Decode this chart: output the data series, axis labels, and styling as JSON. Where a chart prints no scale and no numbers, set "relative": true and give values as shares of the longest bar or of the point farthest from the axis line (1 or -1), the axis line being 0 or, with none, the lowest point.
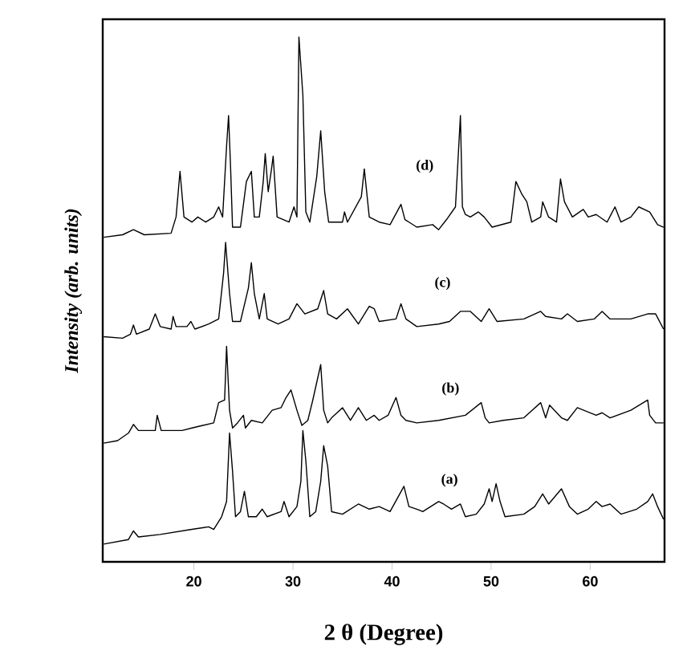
{
  "chart_data": {
    "type": "line",
    "relative": true,
    "xlabel": "2 θ (Degree)",
    "ylabel": "*Intensity (arb. units)*",
    "xlim": [
      10.8,
      67.5
    ],
    "xticks": [
      20,
      30,
      40,
      50,
      60
    ],
    "grid": false,
    "marker": "none",
    "line_style": "solid",
    "annotations": [
      {
        "text": "(a)",
        "x": 45.8,
        "y": 0.126
      },
      {
        "text": "(b)",
        "x": 45.9,
        "y": 0.306
      },
      {
        "text": "(c)",
        "x": 45.1,
        "y": 0.514
      },
      {
        "text": "(d)",
        "x": 43.3,
        "y": 0.745
      }
    ],
    "series": [
      {
        "color": "#000000",
        "x": [
          10.9,
          13.4,
          13.9,
          14.4,
          16.6,
          19.8,
          21.5,
          22.0,
          22.8,
          23.3,
          23.6,
          23.9,
          24.2,
          24.7,
          25.1,
          25.5,
          26.3,
          26.9,
          27.4,
          28.8,
          29.1,
          29.6,
          30.4,
          30.8,
          31.0,
          31.3,
          31.7,
          32.3,
          32.8,
          33.1,
          33.5,
          33.9,
          35.0,
          36.6,
          37.7,
          38.7,
          39.8,
          41.2,
          41.7,
          42.5,
          43.1,
          44.7,
          45.2,
          46.0,
          46.9,
          47.4,
          48.5,
          49.3,
          49.8,
          50.1,
          50.5,
          50.9,
          51.4,
          53.3,
          54.4,
          55.2,
          55.8,
          57.1,
          57.9,
          58.7,
          59.8,
          60.6,
          61.2,
          62.0,
          63.1,
          64.7,
          65.8,
          66.3,
          66.8,
          67.4
        ],
        "values": [
          0.0,
          0.009,
          0.026,
          0.014,
          0.019,
          0.029,
          0.034,
          0.029,
          0.054,
          0.084,
          0.219,
          0.144,
          0.054,
          0.064,
          0.104,
          0.054,
          0.054,
          0.069,
          0.054,
          0.064,
          0.084,
          0.054,
          0.074,
          0.124,
          0.224,
          0.164,
          0.054,
          0.064,
          0.124,
          0.194,
          0.154,
          0.064,
          0.059,
          0.079,
          0.069,
          0.074,
          0.064,
          0.114,
          0.074,
          0.069,
          0.064,
          0.084,
          0.079,
          0.069,
          0.079,
          0.054,
          0.059,
          0.079,
          0.109,
          0.084,
          0.119,
          0.084,
          0.054,
          0.059,
          0.074,
          0.099,
          0.079,
          0.109,
          0.074,
          0.059,
          0.069,
          0.084,
          0.074,
          0.079,
          0.059,
          0.069,
          0.084,
          0.099,
          0.074,
          0.049
        ]
      },
      {
        "color": "#000000",
        "x": [
          10.9,
          12.3,
          13.4,
          13.9,
          14.4,
          16.1,
          16.3,
          16.7,
          18.8,
          19.8,
          20.9,
          22.0,
          22.5,
          23.1,
          23.3,
          23.6,
          23.9,
          24.4,
          25.0,
          25.2,
          25.8,
          26.9,
          27.9,
          28.8,
          29.3,
          29.8,
          30.4,
          30.9,
          31.5,
          32.0,
          32.8,
          33.1,
          33.5,
          33.9,
          35.0,
          35.8,
          36.6,
          37.4,
          38.2,
          38.7,
          39.6,
          40.4,
          40.9,
          41.4,
          42.5,
          44.7,
          47.4,
          49.0,
          49.4,
          49.8,
          51.2,
          53.3,
          55.0,
          55.5,
          55.9,
          57.1,
          57.7,
          58.7,
          60.6,
          61.2,
          62.0,
          64.1,
          65.8,
          66.0,
          66.6,
          67.4
        ],
        "values": [
          0.199,
          0.204,
          0.219,
          0.236,
          0.224,
          0.224,
          0.254,
          0.224,
          0.224,
          0.229,
          0.234,
          0.239,
          0.279,
          0.284,
          0.39,
          0.264,
          0.229,
          0.239,
          0.254,
          0.229,
          0.244,
          0.239,
          0.264,
          0.269,
          0.289,
          0.304,
          0.264,
          0.234,
          0.244,
          0.284,
          0.354,
          0.264,
          0.239,
          0.249,
          0.269,
          0.244,
          0.269,
          0.244,
          0.254,
          0.244,
          0.254,
          0.289,
          0.254,
          0.244,
          0.239,
          0.244,
          0.254,
          0.279,
          0.249,
          0.239,
          0.244,
          0.249,
          0.279,
          0.249,
          0.274,
          0.249,
          0.244,
          0.269,
          0.254,
          0.259,
          0.249,
          0.264,
          0.284,
          0.254,
          0.239,
          0.239
        ]
      },
      {
        "color": "#000000",
        "x": [
          10.9,
          12.8,
          13.6,
          13.9,
          14.2,
          15.5,
          16.1,
          16.6,
          17.7,
          17.9,
          18.2,
          19.3,
          19.7,
          20.1,
          21.5,
          22.5,
          23.0,
          23.2,
          23.6,
          23.9,
          24.7,
          25.5,
          25.8,
          26.1,
          26.6,
          27.1,
          27.4,
          28.5,
          29.6,
          30.4,
          31.2,
          32.5,
          33.1,
          33.5,
          34.4,
          35.5,
          36.6,
          37.7,
          38.2,
          38.7,
          40.4,
          40.9,
          41.4,
          42.5,
          44.7,
          45.8,
          46.9,
          47.9,
          49.0,
          49.8,
          50.6,
          53.3,
          55.0,
          55.5,
          57.1,
          57.7,
          58.7,
          60.4,
          61.2,
          62.0,
          64.1,
          65.8,
          66.6,
          67.4
        ],
        "values": [
          0.409,
          0.406,
          0.414,
          0.432,
          0.414,
          0.424,
          0.454,
          0.429,
          0.424,
          0.449,
          0.429,
          0.429,
          0.439,
          0.424,
          0.434,
          0.444,
          0.535,
          0.595,
          0.494,
          0.439,
          0.439,
          0.505,
          0.555,
          0.494,
          0.444,
          0.494,
          0.444,
          0.434,
          0.444,
          0.474,
          0.454,
          0.464,
          0.5,
          0.454,
          0.444,
          0.464,
          0.434,
          0.469,
          0.464,
          0.439,
          0.444,
          0.474,
          0.444,
          0.429,
          0.434,
          0.439,
          0.459,
          0.459,
          0.439,
          0.464,
          0.439,
          0.444,
          0.459,
          0.449,
          0.444,
          0.454,
          0.439,
          0.444,
          0.459,
          0.444,
          0.444,
          0.454,
          0.454,
          0.424
        ]
      },
      {
        "color": "#000000",
        "x": [
          10.9,
          12.8,
          13.9,
          15.0,
          17.7,
          18.2,
          18.6,
          19.0,
          19.8,
          20.4,
          21.2,
          22.0,
          22.5,
          22.9,
          23.3,
          23.5,
          23.7,
          23.9,
          24.7,
          25.3,
          25.8,
          26.1,
          26.6,
          27.0,
          27.2,
          27.5,
          27.8,
          28.0,
          28.4,
          29.6,
          30.1,
          30.4,
          30.6,
          31.0,
          31.3,
          31.7,
          32.4,
          32.8,
          33.2,
          33.6,
          35.0,
          35.2,
          35.5,
          36.9,
          37.2,
          37.7,
          38.7,
          39.8,
          40.9,
          41.3,
          42.5,
          44.1,
          44.7,
          45.5,
          46.4,
          46.9,
          47.1,
          47.4,
          47.9,
          48.7,
          49.3,
          50.1,
          52.0,
          52.5,
          53.1,
          53.6,
          54.1,
          55.0,
          55.2,
          55.8,
          56.6,
          57.0,
          57.4,
          58.2,
          59.3,
          59.8,
          60.6,
          61.7,
          62.5,
          63.1,
          64.1,
          64.9,
          66.0,
          66.8,
          67.4
        ],
        "values": [
          0.605,
          0.61,
          0.62,
          0.61,
          0.613,
          0.645,
          0.735,
          0.645,
          0.635,
          0.645,
          0.635,
          0.645,
          0.665,
          0.645,
          0.785,
          0.845,
          0.745,
          0.625,
          0.625,
          0.715,
          0.735,
          0.645,
          0.645,
          0.715,
          0.77,
          0.695,
          0.735,
          0.765,
          0.645,
          0.635,
          0.665,
          0.645,
          1.0,
          0.885,
          0.655,
          0.635,
          0.725,
          0.815,
          0.695,
          0.635,
          0.635,
          0.655,
          0.635,
          0.685,
          0.74,
          0.645,
          0.635,
          0.63,
          0.67,
          0.64,
          0.625,
          0.63,
          0.62,
          0.64,
          0.665,
          0.845,
          0.665,
          0.65,
          0.645,
          0.655,
          0.645,
          0.625,
          0.635,
          0.715,
          0.69,
          0.675,
          0.635,
          0.645,
          0.675,
          0.645,
          0.635,
          0.72,
          0.675,
          0.645,
          0.66,
          0.645,
          0.65,
          0.635,
          0.665,
          0.635,
          0.645,
          0.665,
          0.655,
          0.63,
          0.625
        ]
      }
    ]
  }
}
